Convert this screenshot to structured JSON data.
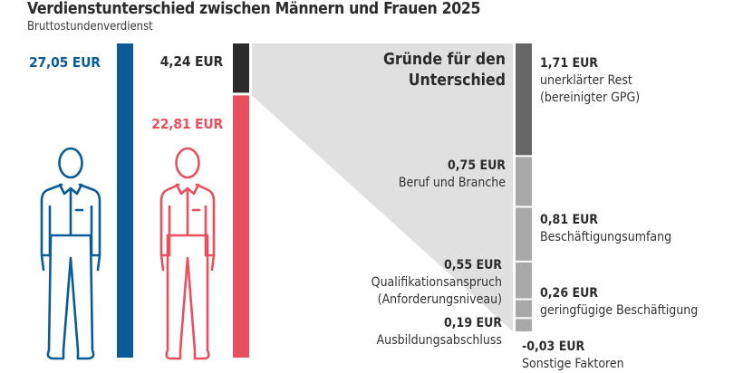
{
  "header": {
    "title": "Verdienstunterschied zwischen Männern und Frauen 2025",
    "subtitle": "Bruttostundenverdienst"
  },
  "colors": {
    "men": "#0b5b96",
    "women": "#e8505e",
    "gap": "#2b2b2b",
    "unexplained": "#666666",
    "explained": "#a8a8a8",
    "wedge": "#e0e0e0"
  },
  "chart_data": {
    "type": "bar",
    "title": "Verdienstunterschied zwischen Männern und Frauen 2025",
    "subtitle": "Bruttostundenverdienst",
    "unit": "EUR",
    "earnings": [
      {
        "name": "Männer",
        "value": 27.05,
        "label": "27,05 EUR"
      },
      {
        "name": "Frauen",
        "value": 22.81,
        "label": "22,81 EUR"
      },
      {
        "name": "Unterschied",
        "value": 4.24,
        "label": "4,24 EUR"
      }
    ],
    "breakdown_title": "Gründe für den Unterschied",
    "breakdown": [
      {
        "value": 1.71,
        "label": "1,71 EUR",
        "name": "unerklärter Rest (bereinigter GPG)",
        "lines": [
          "unerklärter Rest",
          "(bereinigter GPG)"
        ]
      },
      {
        "value": 0.75,
        "label": "0,75 EUR",
        "name": "Beruf und Branche",
        "lines": [
          "Beruf und Branche"
        ]
      },
      {
        "value": 0.81,
        "label": "0,81 EUR",
        "name": "Beschäftigungsumfang",
        "lines": [
          "Beschäftigungsumfang"
        ]
      },
      {
        "value": 0.55,
        "label": "0,55 EUR",
        "name": "Qualifikationsanspruch (Anforderungsniveau)",
        "lines": [
          "Qualifikationsanspruch",
          "(Anforderungsniveau)"
        ]
      },
      {
        "value": 0.26,
        "label": "0,26 EUR",
        "name": "geringfügige Beschäftigung",
        "lines": [
          "geringfügige Beschäftigung"
        ]
      },
      {
        "value": 0.19,
        "label": "0,19 EUR",
        "name": "Ausbildungsabschluss",
        "lines": [
          "Ausbildungsabschluss"
        ]
      },
      {
        "value": -0.03,
        "label": "-0,03 EUR",
        "name": "Sonstige Faktoren",
        "lines": [
          "Sonstige Faktoren"
        ]
      }
    ]
  }
}
